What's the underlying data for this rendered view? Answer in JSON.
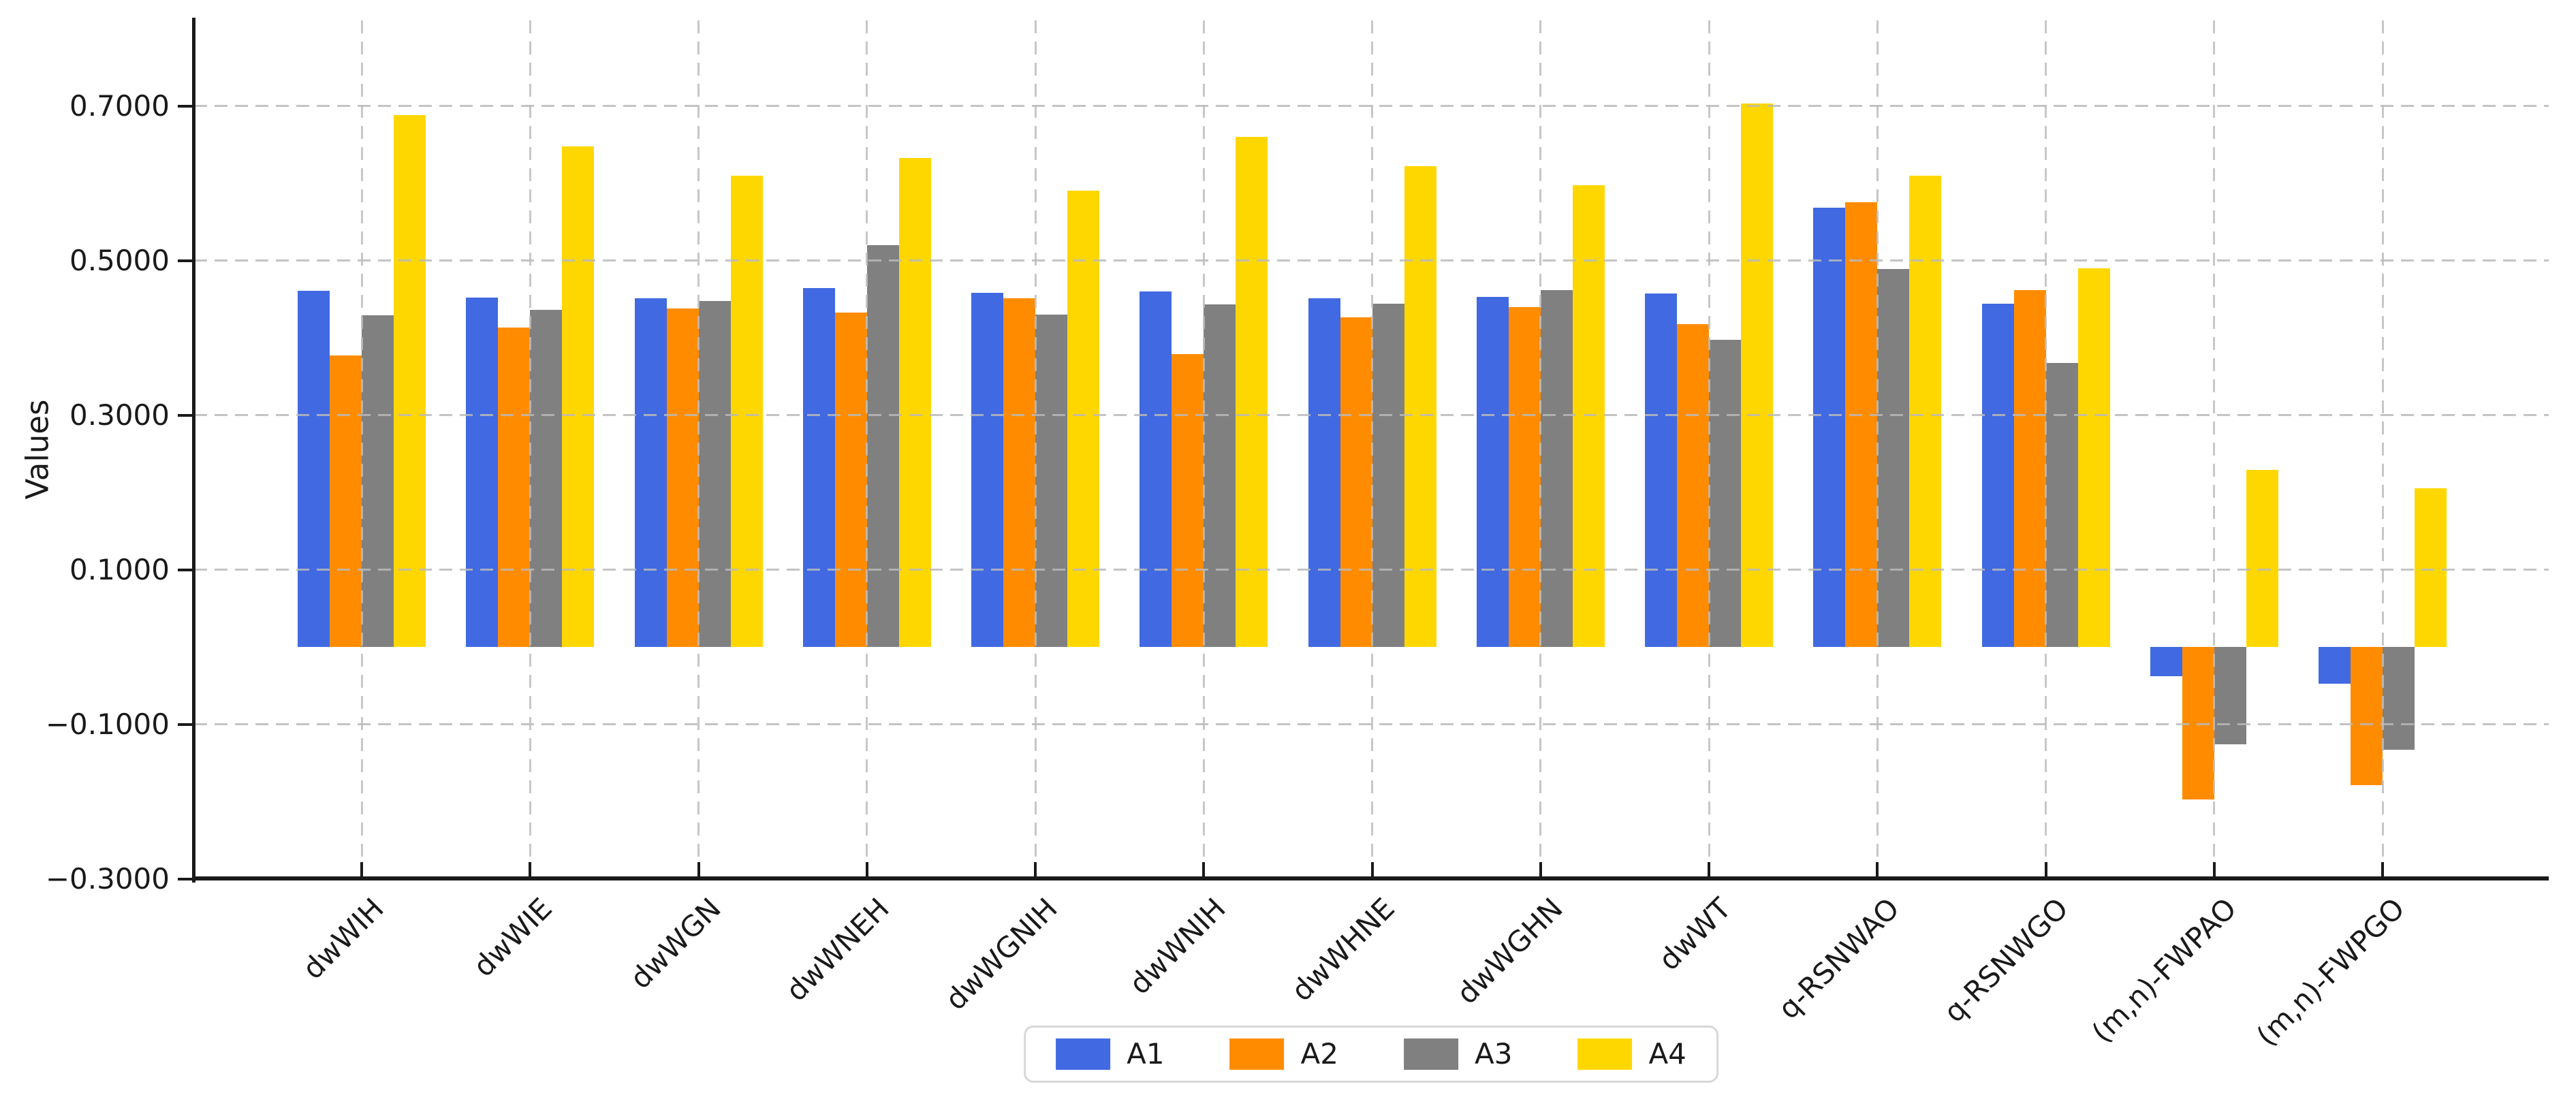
{
  "chart_data": {
    "type": "bar",
    "title": "",
    "xlabel": "",
    "ylabel": "Values",
    "categories": [
      "dwWIH",
      "dwWIE",
      "dwWGN",
      "dwWNEH",
      "dwWGNIH",
      "dwWNIH",
      "dwWHNE",
      "dwWGHN",
      "dwWT",
      "q-RSNWAO",
      "q-RSNWGO",
      "(m,n)-FWPAO",
      "(m,n)-FWPGO"
    ],
    "series": [
      {
        "name": "A1",
        "color": "#4169E1",
        "values": [
          0.461,
          0.452,
          0.451,
          0.464,
          0.458,
          0.46,
          0.451,
          0.453,
          0.457,
          0.568,
          0.444,
          -0.038,
          -0.048
        ]
      },
      {
        "name": "A2",
        "color": "#FF8C00",
        "values": [
          0.377,
          0.413,
          0.438,
          0.433,
          0.451,
          0.379,
          0.426,
          0.44,
          0.418,
          0.575,
          0.462,
          -0.197,
          -0.179
        ]
      },
      {
        "name": "A3",
        "color": "#808080",
        "values": [
          0.429,
          0.436,
          0.448,
          0.52,
          0.43,
          0.443,
          0.444,
          0.462,
          0.397,
          0.489,
          0.367,
          -0.126,
          -0.133
        ]
      },
      {
        "name": "A4",
        "color": "#FFD700",
        "values": [
          0.688,
          0.648,
          0.61,
          0.633,
          0.59,
          0.66,
          0.622,
          0.597,
          0.703,
          0.61,
          0.49,
          0.229,
          0.205
        ]
      }
    ],
    "yticks": [
      0.7,
      0.5,
      0.3,
      0.1,
      -0.1,
      -0.3
    ],
    "ytick_labels": [
      "0.7000",
      "0.5000",
      "0.3000",
      "0.1000",
      "−0.1000",
      "−0.3000"
    ],
    "ylim": [
      -0.3,
      0.81
    ],
    "grid": "dashed gray gridlines, horizontal at yticks and vertical at category centers, drawn over bars",
    "legend_position": "bottom-center",
    "legend_labels": [
      "A1",
      "A2",
      "A3",
      "A4"
    ],
    "background": "#ffffff",
    "axis_color": "#1a1a1a"
  }
}
